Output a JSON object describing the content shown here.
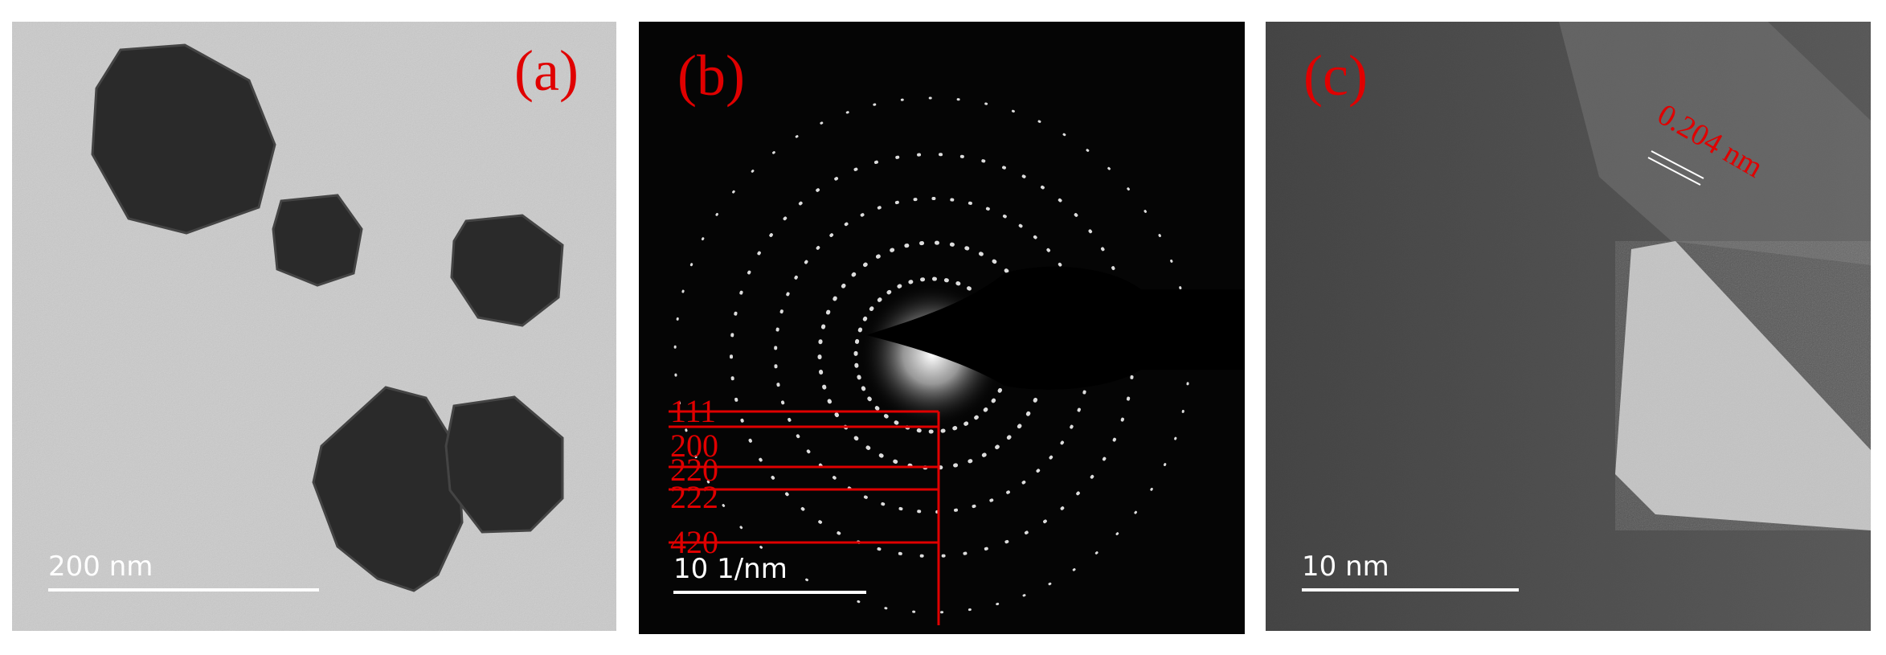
{
  "panels": [
    {
      "label": "(a)",
      "scale_bar": "200 nm"
    },
    {
      "label": "(b)",
      "scale_bar": "10 1/nm",
      "rings": [
        "111",
        "200",
        "220",
        "222",
        "420"
      ]
    },
    {
      "label": "(c)",
      "scale_bar": "10 nm",
      "annotation": "0.204 nm"
    }
  ]
}
